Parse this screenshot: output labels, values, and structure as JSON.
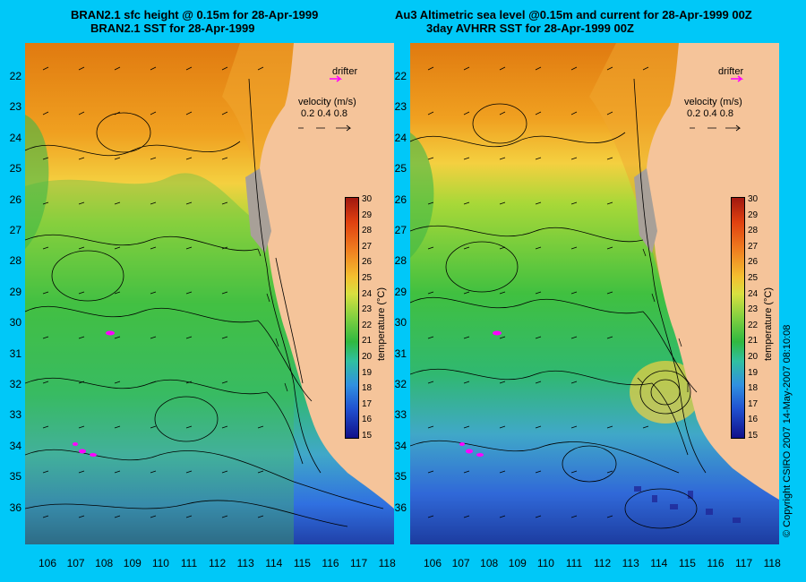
{
  "left_panel": {
    "title_line1": "BRAN2.1 sfc height @ 0.15m for 28-Apr-1999",
    "title_line2": "BRAN2.1 SST for 28-Apr-1999"
  },
  "right_panel": {
    "title_line1": "Au3 Altimetric sea level  @0.15m and current for 28-Apr-1999 00Z",
    "title_line2": "3day AVHRR SST for 28-Apr-1999 00Z"
  },
  "legend": {
    "drifter_label": "drifter",
    "velocity_label": "velocity (m/s)",
    "velocity_scale": "0.2  0.4  0.8"
  },
  "colorbar": {
    "label": "temperature (°C)",
    "ticks": [
      "30",
      "29",
      "28",
      "27",
      "26",
      "25",
      "24",
      "23",
      "22",
      "21",
      "20",
      "19",
      "18",
      "17",
      "16",
      "15"
    ]
  },
  "axes": {
    "lat_ticks": [
      "22",
      "23",
      "24",
      "25",
      "26",
      "27",
      "28",
      "29",
      "30",
      "31",
      "32",
      "33",
      "34",
      "35",
      "36"
    ],
    "lon_ticks": [
      "106",
      "107",
      "108",
      "109",
      "110",
      "111",
      "112",
      "113",
      "114",
      "115",
      "116",
      "117",
      "118"
    ]
  },
  "copyright": "© Copyright CSIRO 2007  14-May-2007 08:10:08",
  "colors": {
    "background": "#00c8f8",
    "land": "#f5c49a",
    "drifter": "#ff00ff"
  }
}
